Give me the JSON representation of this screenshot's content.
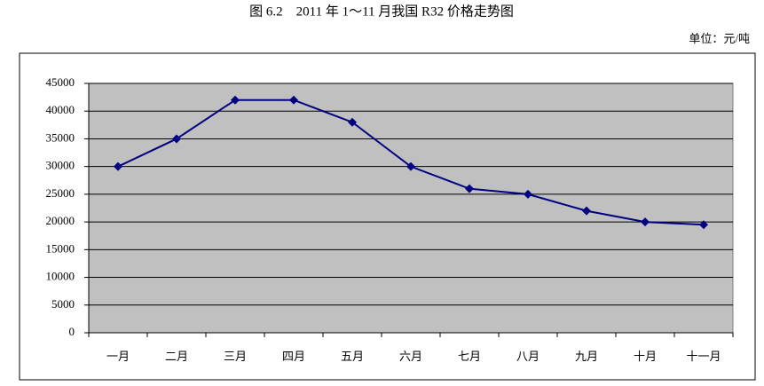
{
  "chart_data": {
    "type": "line",
    "title": "图 6.2　2011 年 1～11 月我国 R32 价格走势图",
    "unit": "单位：元/吨",
    "categories": [
      "一月",
      "二月",
      "三月",
      "四月",
      "五月",
      "六月",
      "七月",
      "八月",
      "九月",
      "十月",
      "十一月"
    ],
    "values": [
      30000,
      35000,
      42000,
      42000,
      38000,
      30000,
      26000,
      25000,
      22000,
      20000,
      19500
    ],
    "color": "#000080",
    "ylim": [
      0,
      45000
    ],
    "yticks": [
      0,
      5000,
      10000,
      15000,
      20000,
      25000,
      30000,
      35000,
      40000,
      45000
    ],
    "grid": true
  }
}
